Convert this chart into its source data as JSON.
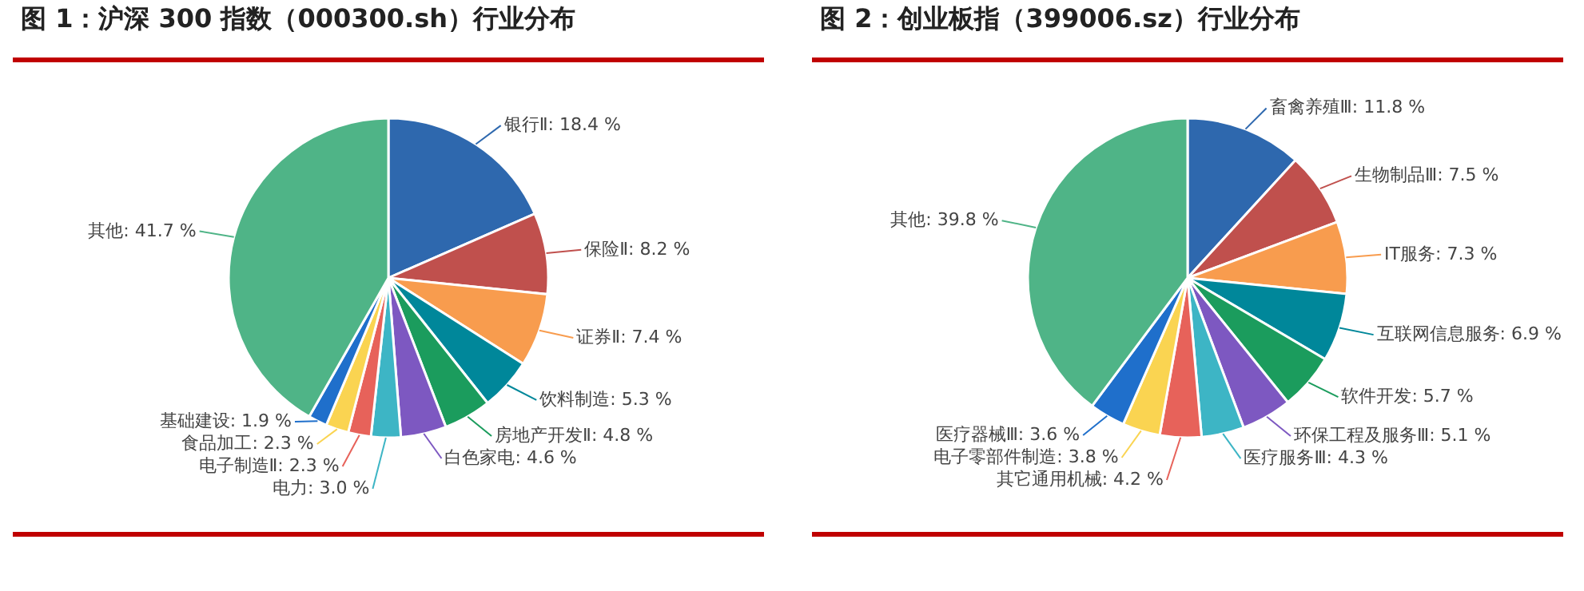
{
  "chart_data": [
    {
      "type": "pie",
      "title": "图 1：沪深 300 指数（000300.sh）行业分布",
      "categories": [
        "银行Ⅱ",
        "保险Ⅱ",
        "证券Ⅱ",
        "饮料制造",
        "房地产开发Ⅱ",
        "白色家电",
        "电力",
        "电子制造Ⅱ",
        "食品加工",
        "基础建设",
        "其他"
      ],
      "values": [
        18.4,
        8.2,
        7.4,
        5.3,
        4.8,
        4.6,
        3.0,
        2.3,
        2.3,
        1.9,
        41.7
      ],
      "value_labels": [
        "18.4 %",
        "8.2 %",
        "7.4 %",
        "5.3 %",
        "4.8 %",
        "4.6 %",
        "3.0 %",
        "2.3 %",
        "2.3 %",
        "1.9 %",
        "41.7 %"
      ],
      "colors": [
        "#2e68ae",
        "#c0504d",
        "#f89c4e",
        "#00879a",
        "#1b9c5d",
        "#7d58c1",
        "#3db5c5",
        "#e7625a",
        "#fad451",
        "#1f6fcb",
        "#4fb487"
      ]
    },
    {
      "type": "pie",
      "title": "图 2：创业板指（399006.sz）行业分布",
      "categories": [
        "畜禽养殖Ⅲ",
        "生物制品Ⅲ",
        "IT服务",
        "互联网信息服务",
        "软件开发",
        "环保工程及服务Ⅲ",
        "医疗服务Ⅲ",
        "其它通用机械",
        "电子零部件制造",
        "医疗器械Ⅲ",
        "其他"
      ],
      "values": [
        11.8,
        7.5,
        7.3,
        6.9,
        5.7,
        5.1,
        4.3,
        4.2,
        3.8,
        3.6,
        39.8
      ],
      "value_labels": [
        "11.8 %",
        "7.5 %",
        "7.3 %",
        "6.9 %",
        "5.7 %",
        "5.1 %",
        "4.3 %",
        "4.2 %",
        "3.8 %",
        "3.6 %",
        "39.8 %"
      ],
      "colors": [
        "#2e68ae",
        "#c0504d",
        "#f89c4e",
        "#00879a",
        "#1b9c5d",
        "#7d58c1",
        "#3db5c5",
        "#e7625a",
        "#fad451",
        "#1f6fcb",
        "#4fb487"
      ]
    }
  ]
}
